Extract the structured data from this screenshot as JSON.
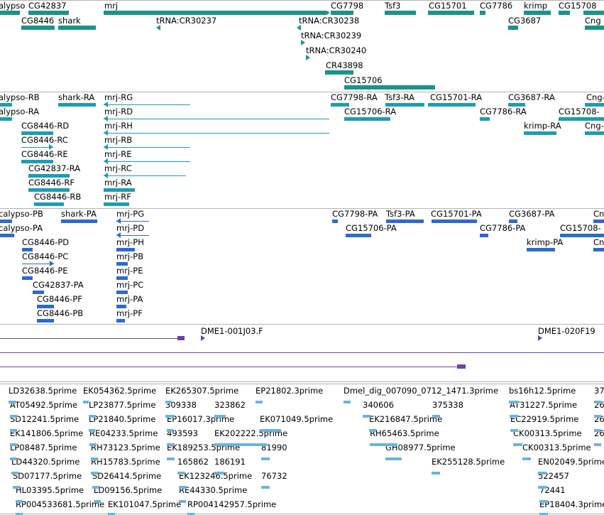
{
  "colors": {
    "gene": "#19938f",
    "transcript": "#1c9db5",
    "protein": "#2d6ad0",
    "clone": "#6a44a6",
    "est": "#6ab4de",
    "divider": "#b4b4b4"
  },
  "tracks": {
    "genes": {
      "labels": [
        "alypso",
        "CG42837",
        "mrj",
        "CG7798",
        "Tsf3",
        "CG15701",
        "CG7786",
        "krimp",
        "CG15708",
        "CG8446",
        "shark",
        "tRNA:CR30237",
        "tRNA:CR30238",
        "CG3687",
        "Cng",
        "tRNA:CR30239",
        "tRNA:CR30240",
        "CR43898",
        "CG15706"
      ]
    },
    "transcripts": {
      "labels": [
        "alypso-RB",
        "shark-RA",
        "mrj-RG",
        "CG7798-RA",
        "Tsf3-RA",
        "CG15701-RA",
        "CG3687-RA",
        "Cng-",
        "alypso-RA",
        "mrj-RD",
        "CG15706-RA",
        "CG7786-RA",
        "CG15708-",
        "CG8446-RD",
        "mrj-RH",
        "krimp-RA",
        "Cng-",
        "mrj-RB",
        "CG8446-RC",
        "CG8446-RE",
        "mrj-RE",
        "CG42837-RA",
        "mrj-RC",
        "CG8446-RF",
        "mrj-RA",
        "CG8446-RB",
        "mrj-RF"
      ]
    },
    "proteins": {
      "labels": [
        "calypso-PB",
        "shark-PA",
        "mrj-PG",
        "CG7798-PA",
        "Tsf3-PA",
        "CG15701-PA",
        "CG3687-PA",
        "Cn",
        "calypso-PA",
        "mrj-PD",
        "CG15706-PA",
        "CG7786-PA",
        "CG15708-",
        "CG8446-PD",
        "mrj-PH",
        "krimp-PA",
        "Cn",
        "CG8446-PC",
        "mrj-PB",
        "CG8446-PE",
        "mrj-PE",
        "CG42837-PA",
        "mrj-PC",
        "CG8446-PF",
        "mrj-PA",
        "CG8446-PB",
        "mrj-PF"
      ]
    },
    "clones": {
      "labels": [
        "DME1-001J03.F",
        "DME1-020F19"
      ]
    },
    "ests": {
      "labels": [
        "LD32638.5prime",
        "EK054362.5prime",
        "EK265307.5prime",
        "EP21802.3prime",
        "Dmel_dig_007090_0712_1471.3prime",
        "bs16h12.5prime",
        "37",
        "AT05492.5prime",
        "LP23877.5prime",
        "309338",
        "323862",
        "340606",
        "375338",
        "AT31227.5prime",
        "26",
        "SD12241.5prime",
        "LP21840.5prime",
        "EP16017.3prime",
        "EK071049.5prime",
        "EK216847.5prime",
        "EC22919.5prime",
        "26",
        "EK141806.5prime",
        "RE04233.5prime",
        "493593",
        "EK202222.5prime",
        "RH65463.5prime",
        "CK00313.5prime",
        "26",
        "LP08487.5prime",
        "RH73123.5prime",
        "EK189253.5prime",
        "81990",
        "GH08977.5prime",
        "CK00313.5prime",
        "LD44320.5prime",
        "RH15783.5prime",
        "165862",
        "186191",
        "EK255128.5prime",
        "EN02049.5prime",
        "SD07177.5prime",
        "SD26414.5prime",
        "EK123246.5prime",
        "76732",
        "522457",
        "HL03395.5prime",
        "LD09156.5prime",
        "RE44330.5prime",
        "72441",
        "RP004533681.5prime",
        "EK101047.5prime",
        "RP004142957.5prime",
        "EP18404.3prime"
      ]
    }
  }
}
